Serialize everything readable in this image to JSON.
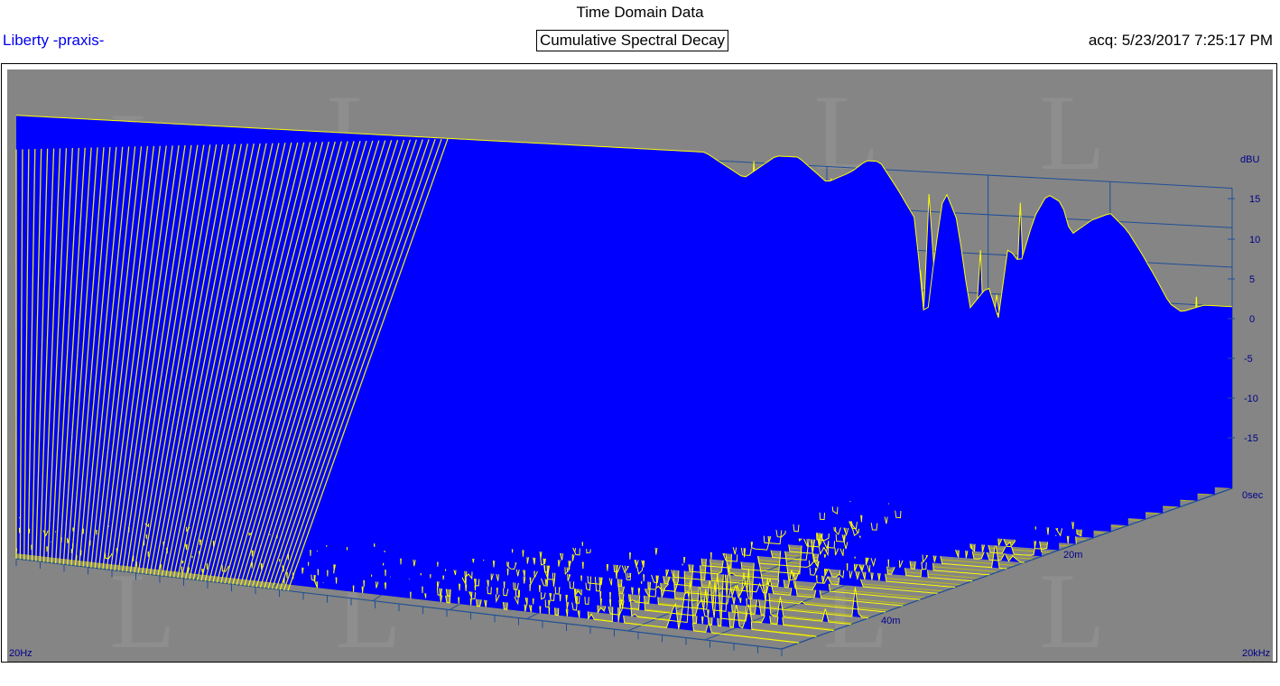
{
  "header": {
    "title": "Time Domain Data",
    "company": "Liberty -praxis-",
    "subtitle": "Cumulative Spectral Decay",
    "acq": "acq: 5/23/2017 7:25:17 PM"
  },
  "colors": {
    "background": "#858585",
    "fill": "#0000ff",
    "trace": "#ffff00",
    "grid": "#1f4e9a",
    "axis_text": "#00008b"
  },
  "chart_data": {
    "type": "waterfall",
    "title": "Cumulative Spectral Decay",
    "x_axis": {
      "label_min": "20Hz",
      "label_max": "20kHz",
      "scale": "log"
    },
    "y_axis": {
      "unit": "dBU",
      "ticks": [
        "15",
        "10",
        "5",
        "0",
        "-5",
        "-10",
        "-15"
      ],
      "range": [
        -18,
        20
      ]
    },
    "z_axis": {
      "ticks": [
        "0sec",
        "20m",
        "40m"
      ],
      "range_ms": [
        0,
        50
      ]
    },
    "first_slice_envelope": {
      "freq_hz": [
        800,
        1000,
        1250,
        1500,
        1700,
        2000,
        2300,
        2500,
        2700,
        3000,
        3300,
        3500,
        3700,
        3900,
        4200,
        4500,
        5000,
        5300,
        5600,
        6000,
        6500,
        7000,
        7600,
        8000,
        9000,
        10000,
        11000,
        12000,
        13000,
        14000,
        15000,
        17000,
        20000
      ],
      "level_db": [
        21,
        21,
        18,
        21,
        21,
        18,
        19.5,
        21,
        21,
        17.5,
        14,
        0,
        10,
        18,
        14,
        3,
        6,
        2,
        11,
        9,
        15,
        18,
        17,
        13,
        15,
        16,
        14,
        11,
        8,
        5,
        4,
        5,
        5
      ]
    },
    "decay_slices_db": [
      {
        "time_ms": 0,
        "level_db": 21
      },
      {
        "time_ms": 2,
        "level_db": 14
      },
      {
        "time_ms": 4,
        "level_db": 8
      },
      {
        "time_ms": 6,
        "level_db": 2
      },
      {
        "time_ms": 10,
        "level_db": -5
      },
      {
        "time_ms": 20,
        "level_db": -12
      },
      {
        "time_ms": 40,
        "level_db": -16
      }
    ]
  }
}
